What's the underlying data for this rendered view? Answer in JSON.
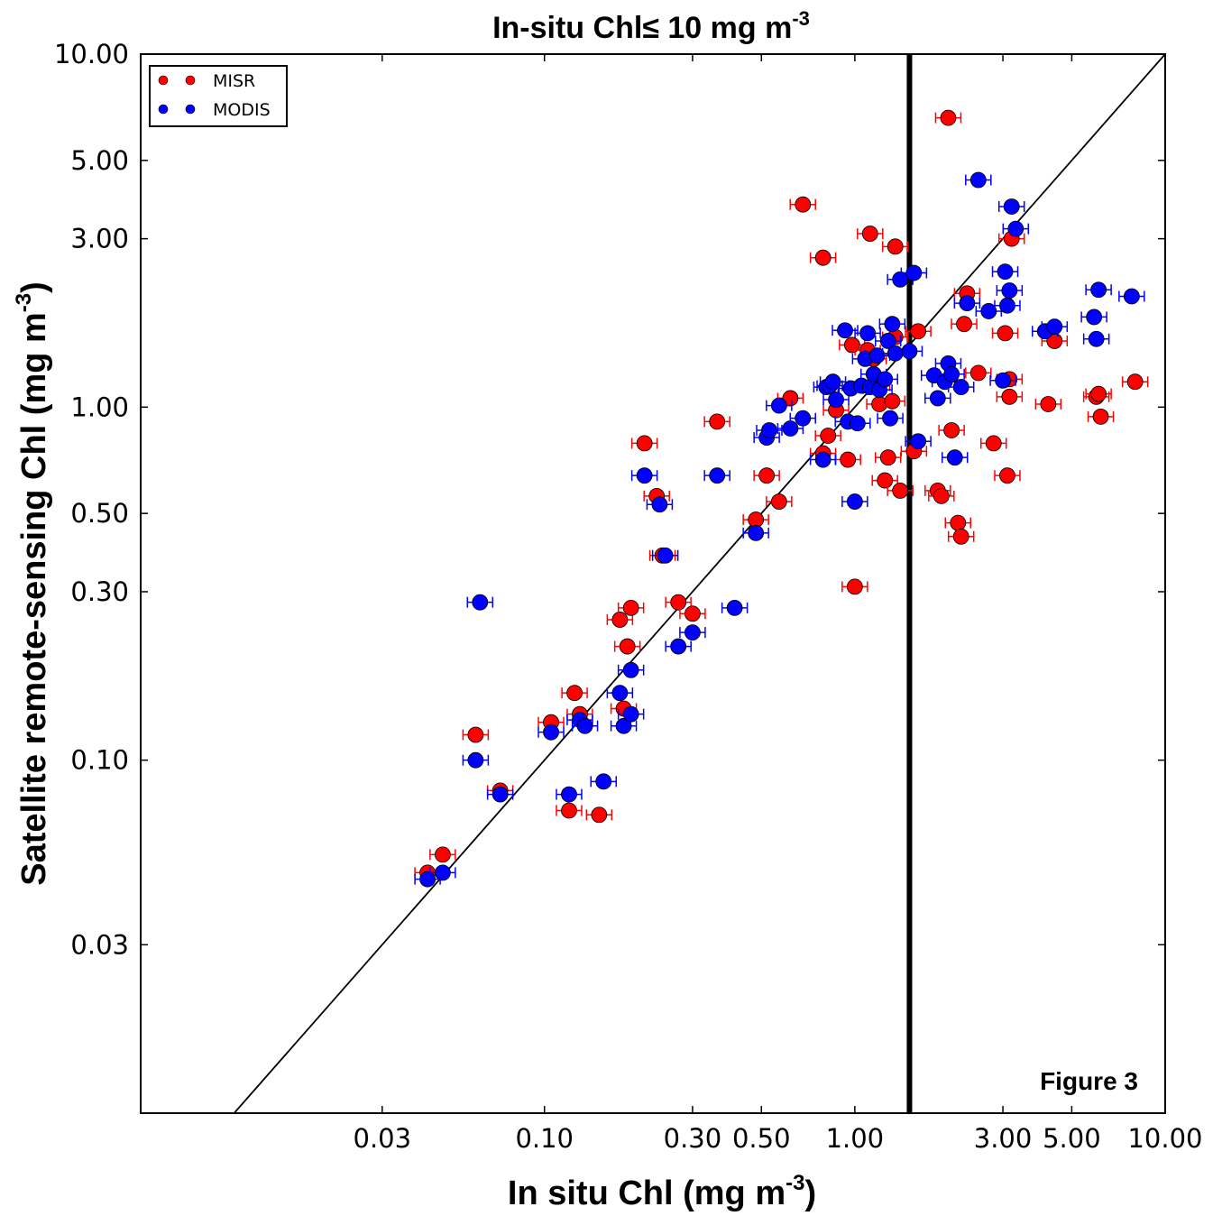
{
  "chart_data": {
    "type": "scatter",
    "title": "In-situ Chl≤ 10 mg m",
    "title_sup": "-3",
    "xlabel": "In situ Chl (mg m",
    "xlabel_sup": "-3",
    "xlabel_end": ")",
    "ylabel": "Satellite remote-sensing Chl (mg m",
    "ylabel_sup": "-3",
    "ylabel_end": ")",
    "annotation": "Figure 3",
    "x_scale": "log",
    "y_scale": "log",
    "xlim": [
      0.005,
      10
    ],
    "ylim": [
      0.01,
      10
    ],
    "x_ticks": [
      0.03,
      0.1,
      0.3,
      0.5,
      1,
      3,
      5,
      10
    ],
    "x_tick_labels": [
      "0.03",
      "0.10",
      "0.30",
      "0.50",
      "1.00",
      "3.00",
      "5.00",
      "10.00"
    ],
    "y_ticks": [
      0.03,
      0.1,
      0.3,
      0.5,
      1,
      3,
      5,
      10
    ],
    "y_tick_labels": [
      "0.03",
      "0.10",
      "0.30",
      "0.50",
      "1.00",
      "3.00",
      "5.00",
      "10.00"
    ],
    "reference_line": "1:1",
    "vertical_line_x": 1.5,
    "legend_position": "top-left",
    "series": [
      {
        "name": "MISR",
        "color": "#ff0000",
        "x": [
          0.042,
          0.047,
          0.06,
          0.072,
          0.105,
          0.12,
          0.125,
          0.13,
          0.15,
          0.175,
          0.18,
          0.185,
          0.19,
          0.21,
          0.23,
          0.24,
          0.27,
          0.3,
          0.36,
          0.48,
          0.52,
          0.57,
          0.62,
          0.68,
          0.79,
          0.79,
          0.82,
          0.87,
          0.95,
          1.0,
          0.98,
          1.1,
          1.12,
          1.15,
          1.18,
          1.2,
          1.25,
          1.28,
          1.32,
          1.35,
          1.35,
          1.4,
          1.55,
          1.6,
          1.85,
          1.9,
          2.0,
          2.05,
          2.15,
          2.2,
          2.25,
          2.3,
          2.5,
          2.8,
          3.05,
          3.1,
          3.15,
          3.15,
          3.2,
          4.2,
          4.4,
          6.0,
          6.1,
          6.2,
          8.0
        ],
        "y": [
          0.048,
          0.054,
          0.118,
          0.082,
          0.128,
          0.072,
          0.155,
          0.135,
          0.07,
          0.25,
          0.14,
          0.21,
          0.27,
          0.79,
          0.56,
          0.38,
          0.28,
          0.26,
          0.91,
          0.48,
          0.64,
          0.54,
          1.06,
          3.75,
          2.65,
          0.74,
          0.83,
          0.98,
          0.71,
          0.31,
          1.5,
          1.45,
          3.1,
          1.37,
          1.15,
          1.02,
          0.62,
          0.72,
          1.04,
          1.58,
          2.85,
          0.58,
          0.75,
          1.64,
          0.58,
          0.56,
          6.6,
          0.86,
          0.47,
          0.43,
          1.72,
          2.1,
          1.25,
          0.79,
          1.62,
          0.64,
          1.07,
          1.2,
          3.0,
          1.02,
          1.54,
          1.07,
          1.09,
          0.94,
          1.18
        ]
      },
      {
        "name": "MODIS",
        "color": "#0000ff",
        "x": [
          0.042,
          0.047,
          0.06,
          0.062,
          0.072,
          0.105,
          0.12,
          0.13,
          0.135,
          0.155,
          0.175,
          0.18,
          0.19,
          0.19,
          0.21,
          0.235,
          0.245,
          0.27,
          0.3,
          0.36,
          0.41,
          0.48,
          0.52,
          0.53,
          0.57,
          0.62,
          0.68,
          0.79,
          0.81,
          0.83,
          0.85,
          0.87,
          0.93,
          0.95,
          0.97,
          1.0,
          1.02,
          1.05,
          1.08,
          1.1,
          1.12,
          1.15,
          1.18,
          1.2,
          1.25,
          1.28,
          1.3,
          1.32,
          1.35,
          1.4,
          1.5,
          1.55,
          1.6,
          1.8,
          1.85,
          1.95,
          2.0,
          2.05,
          2.1,
          2.2,
          2.3,
          2.5,
          2.7,
          3.0,
          3.05,
          3.1,
          3.15,
          3.2,
          3.3,
          4.1,
          4.4,
          5.9,
          6.0,
          6.1,
          7.8
        ],
        "y": [
          0.046,
          0.048,
          0.1,
          0.28,
          0.08,
          0.12,
          0.08,
          0.13,
          0.125,
          0.087,
          0.155,
          0.125,
          0.135,
          0.18,
          0.64,
          0.53,
          0.38,
          0.21,
          0.23,
          0.64,
          0.27,
          0.44,
          0.82,
          0.86,
          1.01,
          0.87,
          0.93,
          0.71,
          1.14,
          1.15,
          1.18,
          1.05,
          1.65,
          0.91,
          1.13,
          0.54,
          0.9,
          1.15,
          1.37,
          1.62,
          1.14,
          1.24,
          1.4,
          1.12,
          1.2,
          1.54,
          0.93,
          1.72,
          1.42,
          2.3,
          1.44,
          2.4,
          0.8,
          1.23,
          1.06,
          1.18,
          1.33,
          1.24,
          0.72,
          1.14,
          1.97,
          4.4,
          1.87,
          1.19,
          2.42,
          1.94,
          2.14,
          3.7,
          3.2,
          1.64,
          1.69,
          1.8,
          1.56,
          2.15,
          2.06
        ]
      }
    ]
  }
}
